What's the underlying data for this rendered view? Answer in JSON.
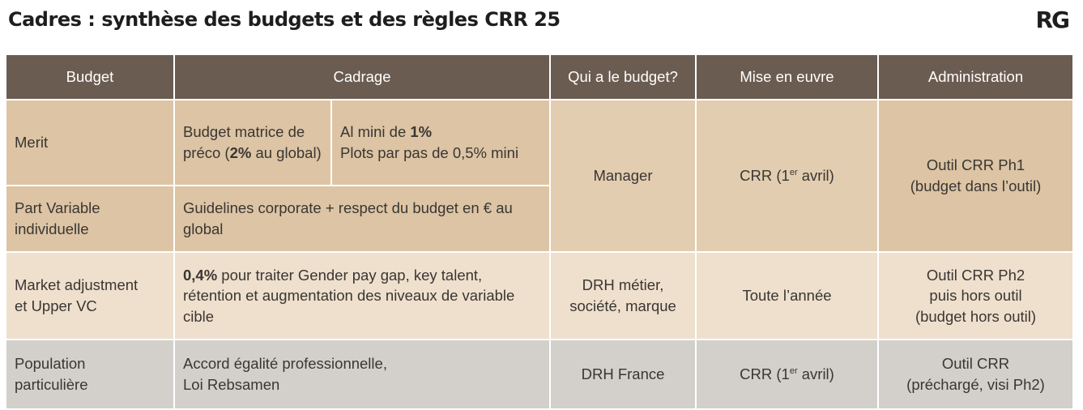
{
  "title": "Cadres : synthèse des budgets et des règles CRR 25",
  "logo": "RG",
  "headers": {
    "budget": "Budget",
    "cadrage": "Cadrage",
    "qui": "Qui a le budget?",
    "mise": "Mise en euvre",
    "admin": "Administration"
  },
  "rows": {
    "merit": {
      "budget": "Merit",
      "cadrage_a_pre": "Budget matrice de préco (",
      "cadrage_a_bold": "2%",
      "cadrage_a_post": " au global)",
      "cadrage_b_pre": "Al mini de ",
      "cadrage_b_bold": "1%",
      "cadrage_b_line2": "Plots par pas de 0,5% mini"
    },
    "merit_pv_shared": {
      "qui": "Manager",
      "mise_pre": "CRR (1",
      "mise_sup": "er",
      "mise_post": " avril)",
      "admin_line1": "Outil CRR Ph1",
      "admin_line2": "(budget dans l’outil)"
    },
    "part_variable": {
      "budget_line1": "Part Variable",
      "budget_line2": "individuelle",
      "cadrage": "Guidelines corporate + respect du budget en € au global"
    },
    "market": {
      "budget_line1": "Market adjustment",
      "budget_line2": "et Upper VC",
      "cadrage_bold": "0,4%",
      "cadrage_rest": " pour traiter Gender pay gap, key talent, rétention et augmentation des niveaux de variable cible",
      "qui_line1": "DRH métier,",
      "qui_line2": "société, marque",
      "mise": "Toute l’année",
      "admin_line1": "Outil CRR Ph2",
      "admin_line2": "puis hors outil",
      "admin_line3": "(budget hors outil)"
    },
    "population": {
      "budget_line1": "Population",
      "budget_line2": "particulière",
      "cadrage_line1": "Accord égalité professionnelle,",
      "cadrage_line2": "Loi Rebsamen",
      "qui": "DRH France",
      "mise_pre": "CRR (1",
      "mise_sup": "er",
      "mise_post": " avril)",
      "admin_line1": "Outil CRR",
      "admin_line2": "(préchargé, visi Ph2)"
    }
  }
}
